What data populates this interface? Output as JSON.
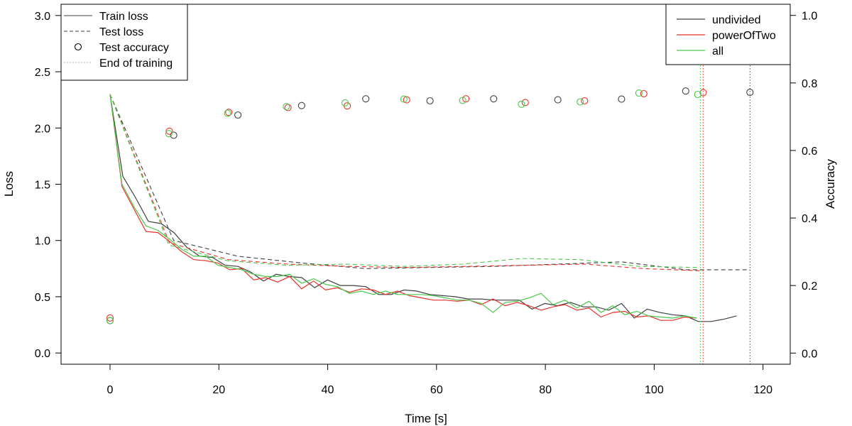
{
  "chart_data": {
    "type": "line",
    "title": "",
    "xlabel": "Time [s]",
    "ylabel_left": "Loss",
    "ylabel_right": "Accuracy",
    "xlim": [
      -9,
      125
    ],
    "ylim_left": [
      -0.1,
      3.1
    ],
    "ylim_right": [
      -0.033,
      1.033
    ],
    "x_ticks": [
      0,
      20,
      40,
      60,
      80,
      100,
      120
    ],
    "y_ticks_left": [
      0.0,
      0.5,
      1.0,
      1.5,
      2.0,
      2.5,
      3.0
    ],
    "y_ticks_right": [
      0.0,
      0.2,
      0.4,
      0.6,
      0.8,
      1.0
    ],
    "x_tick_labels": [
      "0",
      "20",
      "40",
      "60",
      "80",
      "100",
      "120"
    ],
    "y_tick_labels_left": [
      "0.0",
      "0.5",
      "1.0",
      "1.5",
      "2.0",
      "2.5",
      "3.0"
    ],
    "y_tick_labels_right": [
      "0.0",
      "0.2",
      "0.4",
      "0.6",
      "0.8",
      "1.0"
    ],
    "grid": false,
    "legend_style": {
      "title": "",
      "placement": "top-left",
      "entries": [
        {
          "label": "Train loss",
          "style": "solid"
        },
        {
          "label": "Test loss",
          "style": "dashed"
        },
        {
          "label": "Test accuracy",
          "style": "circle"
        },
        {
          "label": "End of training",
          "style": "dotted"
        }
      ]
    },
    "legend_series": {
      "placement": "top-right",
      "entries": [
        {
          "label": "undivided",
          "color": "#404040"
        },
        {
          "label": "powerOfTwo",
          "color": "#e8322a"
        },
        {
          "label": "all",
          "color": "#4cc84c"
        }
      ]
    },
    "series": [
      {
        "name": "undivided",
        "color": "#404040",
        "train_loss": {
          "x": [
            0,
            2.35,
            4.7,
            7.05,
            9.4,
            11.75,
            14.1,
            16.45,
            18.8,
            21.15,
            23.5,
            25.85,
            28.2,
            30.55,
            32.9,
            35.25,
            37.6,
            39.95,
            42.3,
            44.65,
            47.0,
            49.35,
            51.7,
            54.05,
            56.4,
            58.75,
            61.1,
            63.45,
            65.8,
            68.15,
            70.5,
            72.85,
            75.2,
            77.55,
            79.9,
            82.25,
            84.6,
            86.95,
            89.3,
            91.65,
            94.0,
            96.35,
            98.7,
            101.05,
            103.4,
            105.75,
            108.1,
            110.45,
            112.8,
            115.15
          ],
          "y": [
            2.3,
            1.57,
            1.38,
            1.17,
            1.15,
            1.07,
            0.94,
            0.86,
            0.85,
            0.78,
            0.77,
            0.72,
            0.64,
            0.7,
            0.68,
            0.67,
            0.58,
            0.65,
            0.6,
            0.6,
            0.59,
            0.52,
            0.52,
            0.56,
            0.55,
            0.52,
            0.51,
            0.5,
            0.48,
            0.48,
            0.47,
            0.47,
            0.47,
            0.39,
            0.44,
            0.42,
            0.45,
            0.41,
            0.41,
            0.38,
            0.44,
            0.31,
            0.39,
            0.36,
            0.34,
            0.33,
            0.28,
            0.28,
            0.3,
            0.33
          ]
        },
        "test_loss": {
          "x": [
            0,
            11.7,
            23.5,
            35.2,
            47.0,
            58.8,
            70.5,
            82.3,
            94.0,
            105.8,
            117.6
          ],
          "y": [
            2.3,
            1.0,
            0.86,
            0.8,
            0.75,
            0.76,
            0.77,
            0.79,
            0.81,
            0.74,
            0.74
          ]
        },
        "test_accuracy": {
          "x": [
            0,
            11.7,
            23.5,
            35.2,
            47.0,
            58.8,
            70.5,
            82.3,
            94.0,
            105.8,
            117.6
          ],
          "y": [
            0.096,
            0.645,
            0.705,
            0.733,
            0.753,
            0.747,
            0.753,
            0.75,
            0.752,
            0.776,
            0.772
          ]
        },
        "end_of_training": 117.6
      },
      {
        "name": "powerOfTwo",
        "color": "#e8322a",
        "train_loss": {
          "x": [
            0,
            2.2,
            4.4,
            6.6,
            8.8,
            11.0,
            13.2,
            15.4,
            17.6,
            19.8,
            22.0,
            24.2,
            26.4,
            28.6,
            30.8,
            33.0,
            35.2,
            37.4,
            39.6,
            41.8,
            44.0,
            46.2,
            48.4,
            50.6,
            52.8,
            55.0,
            57.2,
            59.4,
            61.6,
            63.8,
            66.0,
            68.2,
            70.4,
            72.6,
            74.8,
            77.0,
            79.2,
            81.4,
            83.6,
            85.8,
            88.0,
            90.2,
            92.4,
            94.6,
            96.8,
            99.0,
            101.2,
            103.4,
            105.6,
            107.8
          ],
          "y": [
            2.3,
            1.48,
            1.28,
            1.08,
            1.07,
            0.99,
            0.9,
            0.83,
            0.82,
            0.8,
            0.74,
            0.75,
            0.65,
            0.67,
            0.63,
            0.68,
            0.57,
            0.64,
            0.56,
            0.58,
            0.54,
            0.57,
            0.56,
            0.52,
            0.55,
            0.51,
            0.49,
            0.47,
            0.47,
            0.46,
            0.47,
            0.43,
            0.48,
            0.42,
            0.45,
            0.42,
            0.38,
            0.41,
            0.43,
            0.38,
            0.4,
            0.32,
            0.36,
            0.37,
            0.32,
            0.33,
            0.29,
            0.29,
            0.32,
            0.31
          ]
        },
        "test_loss": {
          "x": [
            0,
            10.9,
            21.8,
            32.7,
            43.6,
            54.5,
            65.4,
            76.3,
            87.2,
            98.1,
            109.0
          ],
          "y": [
            2.3,
            0.98,
            0.83,
            0.79,
            0.77,
            0.76,
            0.77,
            0.78,
            0.79,
            0.75,
            0.73
          ]
        },
        "test_accuracy": {
          "x": [
            0,
            10.9,
            21.8,
            32.7,
            43.6,
            54.5,
            65.4,
            76.3,
            87.2,
            98.1,
            109.0
          ],
          "y": [
            0.104,
            0.657,
            0.713,
            0.727,
            0.732,
            0.75,
            0.753,
            0.742,
            0.747,
            0.768,
            0.771
          ]
        },
        "end_of_training": 109.0
      },
      {
        "name": "all",
        "color": "#4cc84c",
        "train_loss": {
          "x": [
            0,
            2.2,
            4.4,
            6.6,
            8.8,
            11.0,
            13.2,
            15.4,
            17.6,
            19.8,
            22.0,
            24.2,
            26.4,
            28.6,
            30.8,
            33.0,
            35.2,
            37.4,
            39.6,
            41.8,
            44.0,
            46.2,
            48.4,
            50.6,
            52.8,
            55.0,
            57.2,
            59.4,
            61.6,
            63.8,
            66.0,
            68.2,
            70.4,
            72.6,
            74.8,
            77.0,
            79.2,
            81.4,
            83.6,
            85.8,
            88.0,
            90.2,
            92.4,
            94.6,
            96.8,
            99.0,
            101.2,
            103.4,
            105.6,
            107.8
          ],
          "y": [
            2.3,
            1.5,
            1.3,
            1.13,
            1.09,
            1.01,
            0.92,
            0.86,
            0.86,
            0.78,
            0.76,
            0.74,
            0.7,
            0.68,
            0.68,
            0.7,
            0.62,
            0.66,
            0.61,
            0.59,
            0.53,
            0.55,
            0.52,
            0.55,
            0.52,
            0.52,
            0.52,
            0.51,
            0.49,
            0.47,
            0.47,
            0.44,
            0.36,
            0.45,
            0.46,
            0.49,
            0.53,
            0.43,
            0.47,
            0.4,
            0.46,
            0.36,
            0.42,
            0.34,
            0.37,
            0.33,
            0.32,
            0.31,
            0.33,
            0.31
          ]
        },
        "test_loss": {
          "x": [
            0,
            10.8,
            21.6,
            32.4,
            43.2,
            54.0,
            64.8,
            75.6,
            86.4,
            97.2,
            108.0
          ],
          "y": [
            2.3,
            0.96,
            0.82,
            0.78,
            0.79,
            0.77,
            0.79,
            0.84,
            0.83,
            0.77,
            0.76
          ]
        },
        "test_accuracy": {
          "x": [
            0,
            10.8,
            21.6,
            32.4,
            43.2,
            54.0,
            64.8,
            75.6,
            86.4,
            97.2,
            108.0
          ],
          "y": [
            0.096,
            0.65,
            0.71,
            0.73,
            0.741,
            0.752,
            0.748,
            0.737,
            0.744,
            0.77,
            0.766
          ]
        },
        "end_of_training": 108.5
      }
    ]
  }
}
